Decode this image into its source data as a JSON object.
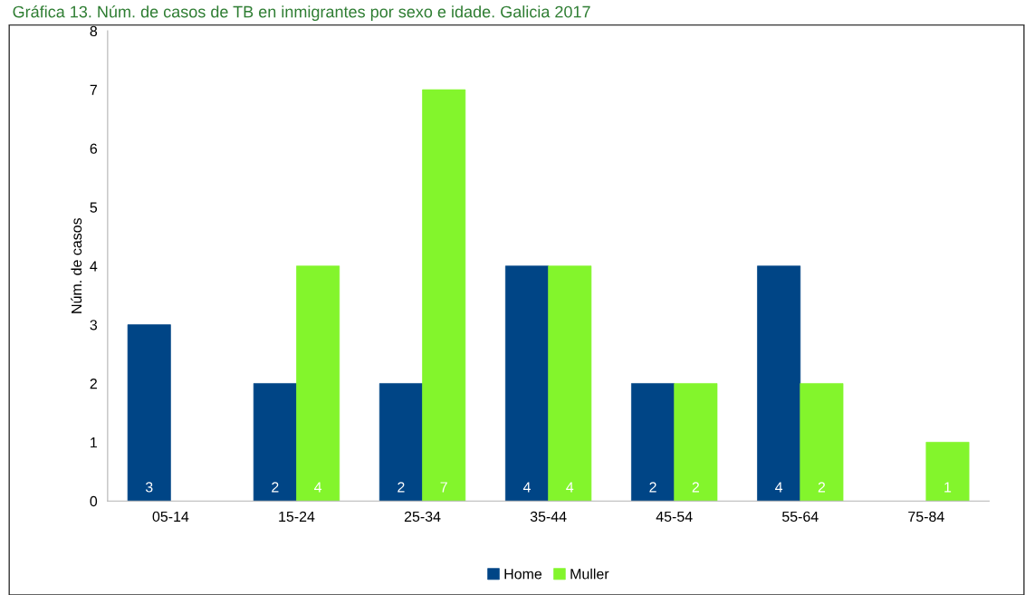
{
  "chart_data": {
    "type": "bar",
    "title": "Gráfica 13. Núm. de casos de TB en inmigrantes por sexo e idade. Galicia 2017",
    "ylabel": "Núm. de casos",
    "categories": [
      "05-14",
      "15-24",
      "25-34",
      "35-44",
      "45-54",
      "55-64",
      "75-84"
    ],
    "series": [
      {
        "name": "Home",
        "color": "#004586",
        "values": [
          3,
          2,
          2,
          4,
          2,
          4,
          null
        ]
      },
      {
        "name": "Muller",
        "color": "#83f52c",
        "values": [
          null,
          4,
          7,
          4,
          2,
          2,
          1
        ]
      }
    ],
    "ylim": [
      0,
      8
    ],
    "yticks": [
      0,
      1,
      2,
      3,
      4,
      5,
      6,
      7,
      8
    ],
    "data_labels": true,
    "legend": "bottom",
    "grid": false
  }
}
